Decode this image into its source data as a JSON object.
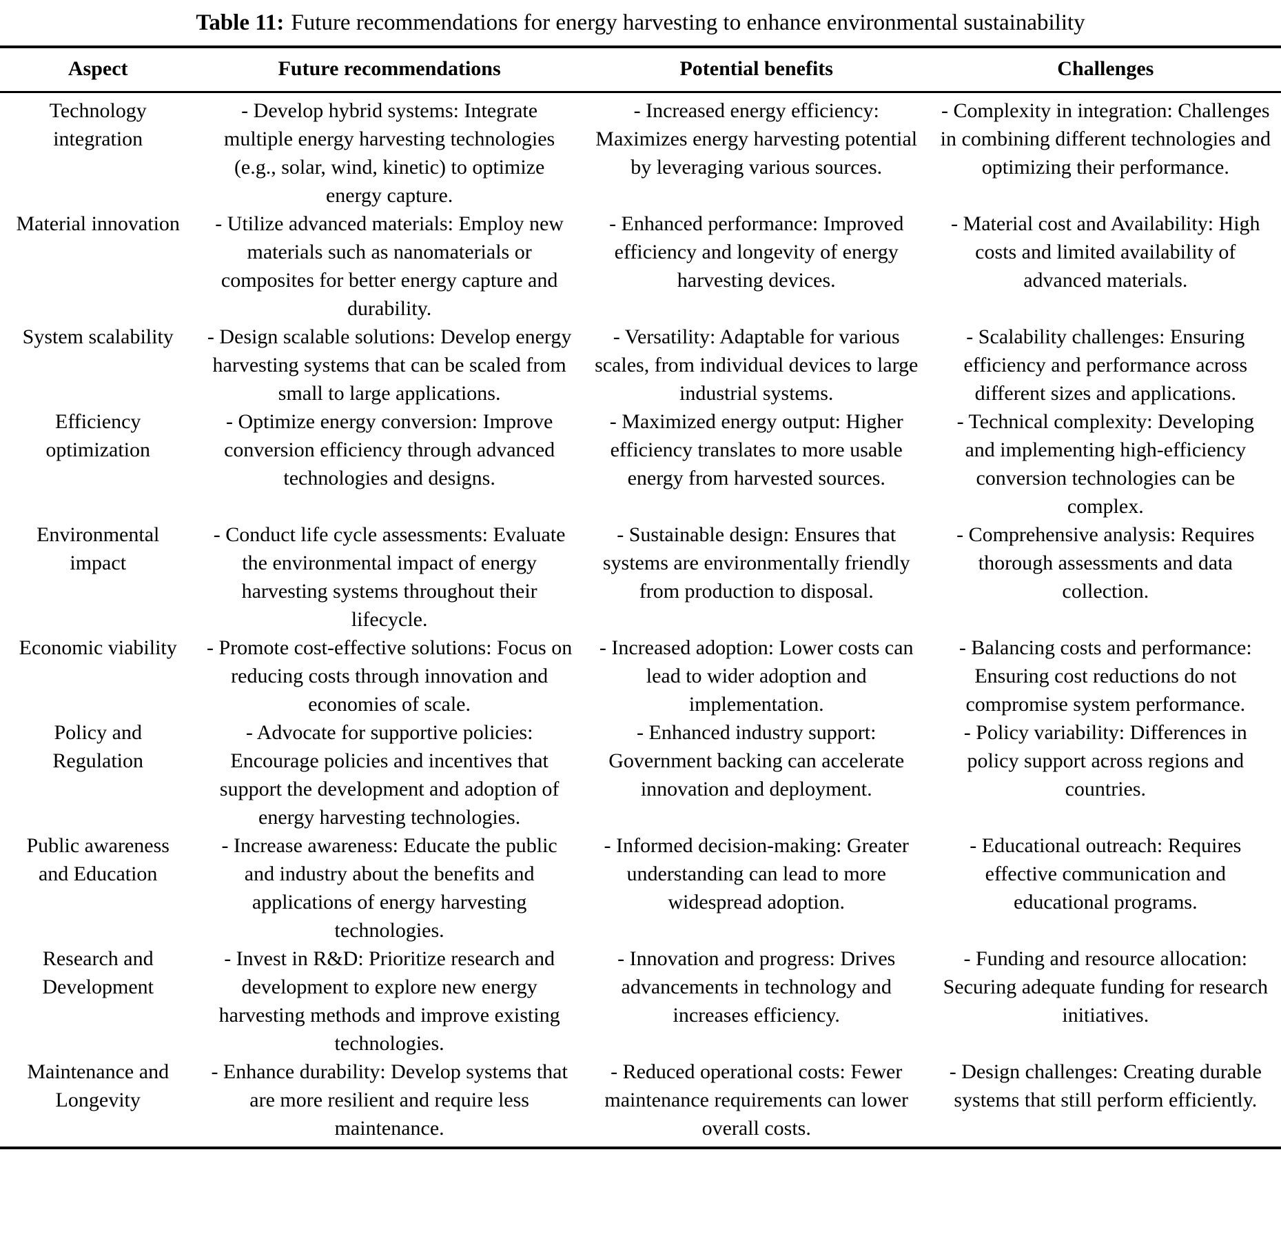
{
  "title": {
    "label": "Table 11:",
    "text": "Future recommendations for energy harvesting to enhance environmental sustainability"
  },
  "table": {
    "columns": [
      "Aspect",
      "Future recommendations",
      "Potential benefits",
      "Challenges"
    ],
    "rows": [
      {
        "aspect": "Technology integration",
        "recommendations": "- Develop hybrid systems: Integrate multiple energy harvesting technologies (e.g., solar, wind, kinetic) to optimize energy capture.",
        "benefits": "- Increased energy efficiency: Maximizes energy harvesting potential by leveraging various sources.",
        "challenges": "- Complexity in integration: Challenges in combining different technologies and optimizing their performance."
      },
      {
        "aspect": "Material innovation",
        "recommendations": "- Utilize advanced materials: Employ new materials such as nanomaterials or composites for better energy capture and durability.",
        "benefits": "- Enhanced performance: Improved efficiency and longevity of energy harvesting devices.",
        "challenges": "- Material cost and Availability: High costs and limited availability of advanced materials."
      },
      {
        "aspect": "System scalability",
        "recommendations": "- Design scalable solutions: Develop energy harvesting systems that can be scaled from small to large applications.",
        "benefits": "- Versatility: Adaptable for various scales, from individual devices to large industrial systems.",
        "challenges": "- Scalability challenges: Ensuring efficiency and performance across different sizes and applications."
      },
      {
        "aspect": "Efficiency optimization",
        "recommendations": "- Optimize energy conversion: Improve conversion efficiency through advanced technologies and designs.",
        "benefits": "- Maximized energy output: Higher efficiency translates to more usable energy from harvested sources.",
        "challenges": "- Technical complexity: Developing and implementing high-efficiency conversion technologies can be complex."
      },
      {
        "aspect": "Environmental impact",
        "recommendations": "- Conduct life cycle assessments: Evaluate the environmental impact of energy harvesting systems throughout their lifecycle.",
        "benefits": "- Sustainable design: Ensures that systems are environmentally friendly from production to disposal.",
        "challenges": "- Comprehensive analysis: Requires thorough assessments and data collection."
      },
      {
        "aspect": "Economic viability",
        "recommendations": "- Promote cost-effective solutions: Focus on reducing costs through innovation and economies of scale.",
        "benefits": "- Increased adoption: Lower costs can lead to wider adoption and implementation.",
        "challenges": "- Balancing costs and performance: Ensuring cost reductions do not compromise system performance."
      },
      {
        "aspect": "Policy and Regulation",
        "recommendations": "- Advocate for supportive policies: Encourage policies and incentives that support the development and adoption of energy harvesting technologies.",
        "benefits": "- Enhanced industry support: Government backing can accelerate innovation and deployment.",
        "challenges": "- Policy variability: Differences in policy support across regions and countries."
      },
      {
        "aspect": "Public awareness and Education",
        "recommendations": "- Increase awareness: Educate the public and industry about the benefits and applications of energy harvesting technologies.",
        "benefits": "- Informed decision-making: Greater understanding can lead to more widespread adoption.",
        "challenges": "- Educational outreach: Requires effective communication and educational programs."
      },
      {
        "aspect": "Research and Development",
        "recommendations": "- Invest in R&D: Prioritize research and development to explore new energy harvesting methods and improve existing technologies.",
        "benefits": "- Innovation and progress: Drives advancements in technology and increases efficiency.",
        "challenges": "- Funding and resource allocation: Securing adequate funding for research initiatives."
      },
      {
        "aspect": "Maintenance and Longevity",
        "recommendations": "- Enhance durability: Develop systems that are more resilient and require less maintenance.",
        "benefits": "- Reduced operational costs: Fewer maintenance requirements can lower overall costs.",
        "challenges": "- Design challenges: Creating durable systems that still perform efficiently."
      }
    ]
  }
}
